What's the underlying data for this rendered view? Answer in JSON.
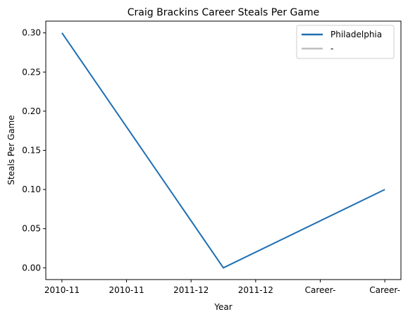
{
  "chart_data": {
    "type": "line",
    "title": "Craig Brackins Career Steals Per Game",
    "xlabel": "Year",
    "ylabel": "Steals Per Game",
    "categories": [
      "2010-11",
      "2010-11",
      "2011-12",
      "2011-12",
      "Career-",
      "Career-"
    ],
    "ylim": [
      -0.015,
      0.315
    ],
    "yticks": [
      "0.00",
      "0.05",
      "0.10",
      "0.15",
      "0.20",
      "0.25",
      "0.30"
    ],
    "series": [
      {
        "name": "Philadelphia",
        "color": "#1f6fb3",
        "x": [
          0,
          2.5,
          5
        ],
        "values": [
          0.3,
          0.0,
          0.1
        ]
      },
      {
        "name": "-",
        "color": "#bfbfbf",
        "x": [],
        "values": []
      }
    ],
    "legend_position": "top-right",
    "grid": false
  }
}
